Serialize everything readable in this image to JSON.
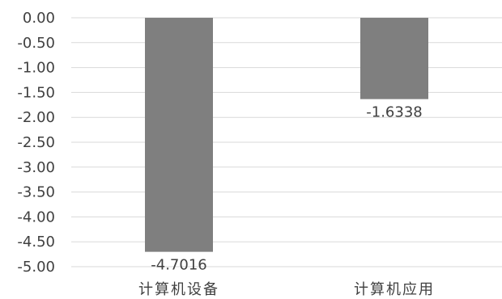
{
  "chart_data": {
    "type": "bar",
    "title": "",
    "xlabel": "",
    "ylabel": "",
    "categories": [
      "计算机设备",
      "计算机应用"
    ],
    "values": [
      -4.7016,
      -1.6338
    ],
    "data_labels": [
      "-4.7016",
      "-1.6338"
    ],
    "ylim": [
      -5.0,
      0.0
    ],
    "y_ticks": [
      0.0,
      -0.5,
      -1.0,
      -1.5,
      -2.0,
      -2.5,
      -3.0,
      -3.5,
      -4.0,
      -4.5,
      -5.0
    ],
    "y_tick_labels": [
      "0.00",
      "-0.50",
      "-1.00",
      "-1.50",
      "-2.00",
      "-2.50",
      "-3.00",
      "-3.50",
      "-4.00",
      "-4.50",
      "-5.00"
    ],
    "grid": true,
    "legend": "none",
    "colors": {
      "bar": "#7f7f7f",
      "grid": "#d9d9d9",
      "text": "#404040"
    }
  }
}
